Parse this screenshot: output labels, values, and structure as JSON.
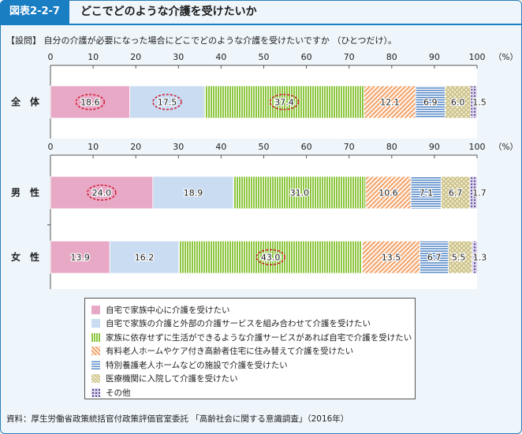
{
  "header": {
    "figure_no": "図表2-2-7",
    "title": "どこでどのような介護を受けたいか"
  },
  "question": "【設問】 自分の介護が必要になった場合にどこでどのような介護を受けたいですか （ひとつだけ）。",
  "source": "資料：厚生労働省政策統括官付政策評価官室委託 「高齢社会に関する意識調査」（2016年）",
  "colors": {
    "home_family": "#e8a9c6",
    "home_family_external": "#c9dcf2",
    "home_services": "#8dc63f",
    "facility_residence": "#f3a46b",
    "special_nursing_home": "#5b8cc9",
    "hospital": "#d9d09b",
    "other": "#8d7bb8"
  },
  "chart_data": [
    {
      "type": "bar",
      "orientation": "horizontal",
      "stacked": true,
      "x_ticks": [
        "0",
        "10",
        "20",
        "30",
        "40",
        "50",
        "60",
        "70",
        "80",
        "90",
        "100"
      ],
      "unit": "（%）",
      "xlim": [
        0,
        100
      ],
      "categories": [
        "全　体"
      ],
      "series": [
        {
          "name": "自宅で家族中心に介護を受けたい",
          "values": [
            18.6
          ],
          "labels": [
            "18.6"
          ],
          "highlight": [
            true
          ]
        },
        {
          "name": "自宅で家族の介護と外部の介護サービスを組み合わせて介護を受けたい",
          "values": [
            17.5
          ],
          "labels": [
            "17.5"
          ],
          "highlight": [
            true
          ]
        },
        {
          "name": "家族に依存せずに生活ができるような介護サービスがあれば自宅で介護を受けたい",
          "values": [
            37.4
          ],
          "labels": [
            "37.4"
          ],
          "highlight": [
            true
          ]
        },
        {
          "name": "有料老人ホームやケア付き高齢者住宅に住み替えて介護を受けたい",
          "values": [
            12.1
          ],
          "labels": [
            "12.1"
          ],
          "highlight": [
            false
          ]
        },
        {
          "name": "特別養護老人ホームなどの施設で介護を受けたい",
          "values": [
            6.9
          ],
          "labels": [
            "6.9"
          ],
          "highlight": [
            false
          ]
        },
        {
          "name": "医療機関に入院して介護を受けたい",
          "values": [
            6.0
          ],
          "labels": [
            "6.0"
          ],
          "highlight": [
            false
          ]
        },
        {
          "name": "その他",
          "values": [
            1.5
          ],
          "labels": [
            "1.5"
          ],
          "highlight": [
            false
          ]
        }
      ]
    },
    {
      "type": "bar",
      "orientation": "horizontal",
      "stacked": true,
      "x_ticks": [
        "0",
        "10",
        "20",
        "30",
        "40",
        "50",
        "60",
        "70",
        "80",
        "90",
        "100"
      ],
      "unit": "（%）",
      "xlim": [
        0,
        100
      ],
      "categories": [
        "男　性",
        "女　性"
      ],
      "series": [
        {
          "name": "自宅で家族中心に介護を受けたい",
          "values": [
            24.0,
            13.9
          ],
          "labels": [
            "24.0",
            "13.9"
          ],
          "highlight": [
            true,
            false
          ]
        },
        {
          "name": "自宅で家族の介護と外部の介護サービスを組み合わせて介護を受けたい",
          "values": [
            18.9,
            16.2
          ],
          "labels": [
            "18.9",
            "16.2"
          ],
          "highlight": [
            false,
            false
          ]
        },
        {
          "name": "家族に依存せずに生活ができるような介護サービスがあれば自宅で介護を受けたい",
          "values": [
            31.0,
            43.0
          ],
          "labels": [
            "31.0",
            "43.0"
          ],
          "highlight": [
            false,
            true
          ]
        },
        {
          "name": "有料老人ホームやケア付き高齢者住宅に住み替えて介護を受けたい",
          "values": [
            10.6,
            13.5
          ],
          "labels": [
            "10.6",
            "13.5"
          ],
          "highlight": [
            false,
            false
          ]
        },
        {
          "name": "特別養護老人ホームなどの施設で介護を受けたい",
          "values": [
            7.1,
            6.7
          ],
          "labels": [
            "7.1",
            "6.7"
          ],
          "highlight": [
            false,
            false
          ]
        },
        {
          "name": "医療機関に入院して介護を受けたい",
          "values": [
            6.7,
            5.5
          ],
          "labels": [
            "6.7",
            "5.5"
          ],
          "highlight": [
            false,
            false
          ]
        },
        {
          "name": "その他",
          "values": [
            1.7,
            1.3
          ],
          "labels": [
            "1.7",
            "1.3"
          ],
          "highlight": [
            false,
            false
          ]
        }
      ]
    }
  ],
  "legend": {
    "items": [
      {
        "label": "自宅で家族中心に介護を受けたい",
        "color_key": "home_family",
        "pattern": "solid"
      },
      {
        "label": "自宅で家族の介護と外部の介護サービスを組み合わせて介護を受けたい",
        "color_key": "home_family_external",
        "pattern": "solid"
      },
      {
        "label": "家族に依存せずに生活ができるような介護サービスがあれば自宅で介護を受けたい",
        "color_key": "home_services",
        "pattern": "vertical-lines"
      },
      {
        "label": "有料老人ホームやケア付き高齢者住宅に住み替えて介護を受けたい",
        "color_key": "facility_residence",
        "pattern": "diagonal-lines"
      },
      {
        "label": "特別養護老人ホームなどの施設で介護を受けたい",
        "color_key": "special_nursing_home",
        "pattern": "horizontal-lines"
      },
      {
        "label": "医療機関に入院して介護を受けたい",
        "color_key": "hospital",
        "pattern": "crosshatch"
      },
      {
        "label": "その他",
        "color_key": "other",
        "pattern": "dots"
      }
    ]
  }
}
